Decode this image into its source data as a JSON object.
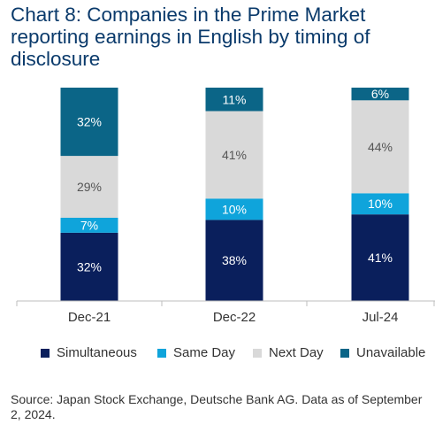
{
  "title": "Chart 8: Companies in the Prime Market reporting earnings in English by timing of disclosure",
  "source": "Source: Japan Stock Exchange, Deutsche Bank AG. Data as of September 2, 2024.",
  "colors": {
    "Simultaneous": "#0a1f5c",
    "Same Day": "#0fa4db",
    "Next Day": "#d9d9d9",
    "Unavailable": "#0b6587"
  },
  "chart_data": {
    "type": "bar",
    "stacked": true,
    "categories": [
      "Dec-21",
      "Dec-22",
      "Jul-24"
    ],
    "series": [
      {
        "name": "Simultaneous",
        "values": [
          32,
          38,
          41
        ]
      },
      {
        "name": "Same Day",
        "values": [
          7,
          10,
          10
        ]
      },
      {
        "name": "Next Day",
        "values": [
          29,
          41,
          44
        ]
      },
      {
        "name": "Unavailable",
        "values": [
          32,
          11,
          6
        ]
      }
    ],
    "data_labels": [
      [
        "32%",
        "38%",
        "41%"
      ],
      [
        "7%",
        "10%",
        "10%"
      ],
      [
        "29%",
        "41%",
        "44%"
      ],
      [
        "32%",
        "11%",
        "6%"
      ]
    ],
    "ylim": [
      0,
      100
    ],
    "grid": false,
    "legend": "bottom"
  }
}
